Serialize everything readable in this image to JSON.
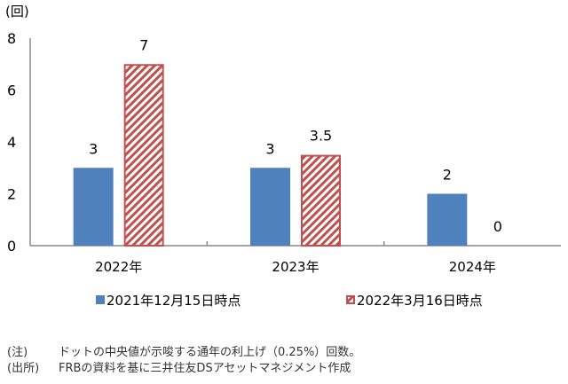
{
  "chart_data": {
    "type": "bar",
    "unit_label": "(回)",
    "categories": [
      "2022年",
      "2023年",
      "2024年"
    ],
    "series": [
      {
        "name": "2021年12月15日時点",
        "values": [
          3,
          3,
          2
        ],
        "color": "#4f81bd",
        "pattern": "solid"
      },
      {
        "name": "2022年3月16日時点",
        "values": [
          7,
          3.5,
          0
        ],
        "color": "#c0504d",
        "pattern": "diagonal-stripes"
      }
    ],
    "data_labels": [
      [
        "3",
        "3",
        "2"
      ],
      [
        "7",
        "3.5",
        "0"
      ]
    ],
    "ylim": [
      0,
      8
    ],
    "yticks": [
      0,
      2,
      4,
      6,
      8
    ],
    "grid": false,
    "legend": "bottom"
  },
  "notes": [
    {
      "label": "(注)",
      "text": "ドットの中央値が示唆する通年の利上げ（0.25%）回数。"
    },
    {
      "label": "(出所)",
      "text": "FRBの資料を基に三井住友DSアセットマネジメント作成"
    }
  ]
}
